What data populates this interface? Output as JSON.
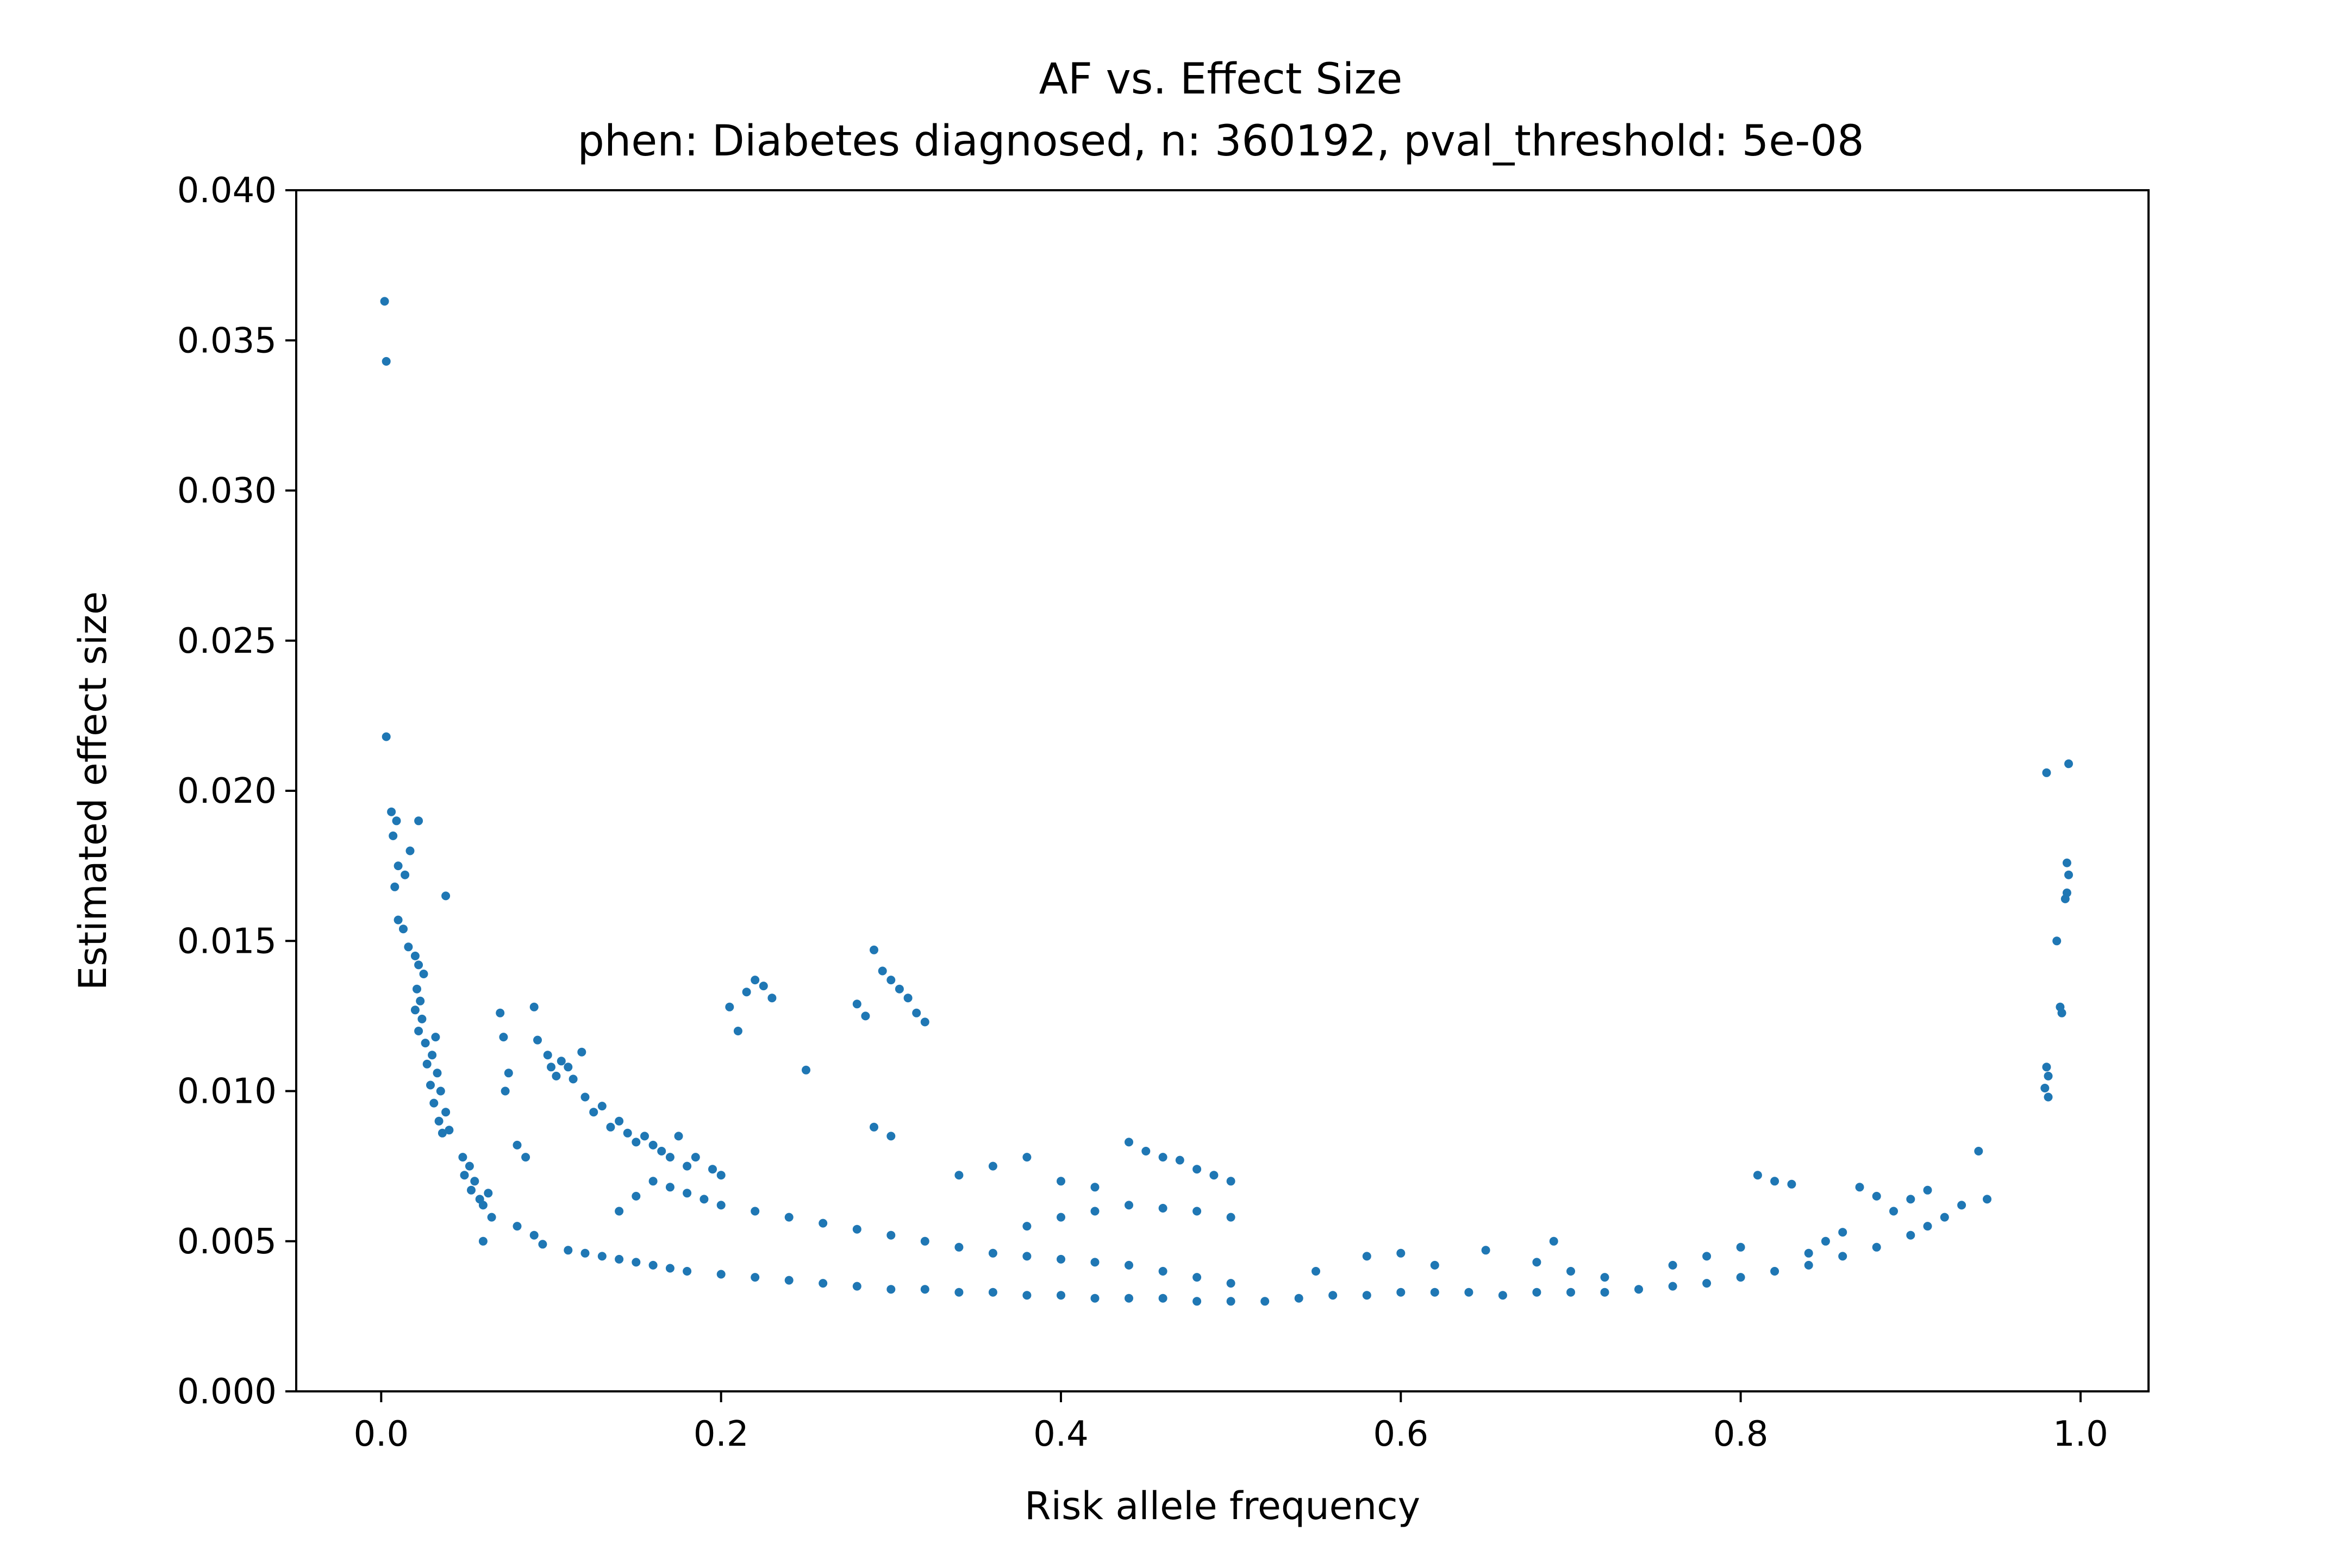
{
  "chart_data": {
    "type": "scatter",
    "title": "AF vs. Effect Size",
    "subtitle": "phen: Diabetes diagnosed, n: 360192, pval_threshold: 5e-08",
    "xlabel": "Risk allele frequency",
    "ylabel": "Estimated effect size",
    "xlim": [
      -0.05,
      1.04
    ],
    "ylim": [
      0.0,
      0.04
    ],
    "x_ticks": [
      "0.0",
      "0.2",
      "0.4",
      "0.6",
      "0.8",
      "1.0"
    ],
    "x_tick_values": [
      0.0,
      0.2,
      0.4,
      0.6,
      0.8,
      1.0
    ],
    "y_ticks": [
      "0.000",
      "0.005",
      "0.010",
      "0.015",
      "0.020",
      "0.025",
      "0.030",
      "0.035",
      "0.040"
    ],
    "y_tick_values": [
      0.0,
      0.005,
      0.01,
      0.015,
      0.02,
      0.025,
      0.03,
      0.035,
      0.04
    ],
    "grid": false,
    "legend": "none",
    "point_color": "#1f77b4",
    "series": [
      {
        "values_xy": [
          [
            0.002,
            0.0363
          ],
          [
            0.003,
            0.0343
          ],
          [
            0.003,
            0.0218
          ],
          [
            0.006,
            0.0193
          ],
          [
            0.009,
            0.019
          ],
          [
            0.007,
            0.0185
          ],
          [
            0.022,
            0.019
          ],
          [
            0.017,
            0.018
          ],
          [
            0.01,
            0.0175
          ],
          [
            0.014,
            0.0172
          ],
          [
            0.008,
            0.0168
          ],
          [
            0.038,
            0.0165
          ],
          [
            0.01,
            0.0157
          ],
          [
            0.013,
            0.0154
          ],
          [
            0.016,
            0.0148
          ],
          [
            0.02,
            0.0145
          ],
          [
            0.022,
            0.0142
          ],
          [
            0.025,
            0.0139
          ],
          [
            0.021,
            0.0134
          ],
          [
            0.023,
            0.013
          ],
          [
            0.02,
            0.0127
          ],
          [
            0.024,
            0.0124
          ],
          [
            0.022,
            0.012
          ],
          [
            0.026,
            0.0116
          ],
          [
            0.032,
            0.0118
          ],
          [
            0.03,
            0.0112
          ],
          [
            0.027,
            0.0109
          ],
          [
            0.033,
            0.0106
          ],
          [
            0.029,
            0.0102
          ],
          [
            0.035,
            0.01
          ],
          [
            0.031,
            0.0096
          ],
          [
            0.038,
            0.0093
          ],
          [
            0.034,
            0.009
          ],
          [
            0.04,
            0.0087
          ],
          [
            0.036,
            0.0086
          ],
          [
            0.048,
            0.0078
          ],
          [
            0.052,
            0.0075
          ],
          [
            0.049,
            0.0072
          ],
          [
            0.055,
            0.007
          ],
          [
            0.053,
            0.0067
          ],
          [
            0.058,
            0.0064
          ],
          [
            0.06,
            0.0062
          ],
          [
            0.063,
            0.0066
          ],
          [
            0.07,
            0.0126
          ],
          [
            0.072,
            0.0118
          ],
          [
            0.075,
            0.0106
          ],
          [
            0.073,
            0.01
          ],
          [
            0.08,
            0.0082
          ],
          [
            0.085,
            0.0078
          ],
          [
            0.09,
            0.0128
          ],
          [
            0.092,
            0.0117
          ],
          [
            0.098,
            0.0112
          ],
          [
            0.1,
            0.0108
          ],
          [
            0.103,
            0.0105
          ],
          [
            0.106,
            0.011
          ],
          [
            0.11,
            0.0108
          ],
          [
            0.113,
            0.0104
          ],
          [
            0.118,
            0.0113
          ],
          [
            0.12,
            0.0098
          ],
          [
            0.125,
            0.0093
          ],
          [
            0.13,
            0.0095
          ],
          [
            0.135,
            0.0088
          ],
          [
            0.14,
            0.009
          ],
          [
            0.145,
            0.0086
          ],
          [
            0.15,
            0.0083
          ],
          [
            0.155,
            0.0085
          ],
          [
            0.16,
            0.0082
          ],
          [
            0.165,
            0.008
          ],
          [
            0.17,
            0.0078
          ],
          [
            0.175,
            0.0085
          ],
          [
            0.18,
            0.0075
          ],
          [
            0.185,
            0.0078
          ],
          [
            0.195,
            0.0074
          ],
          [
            0.2,
            0.0072
          ],
          [
            0.205,
            0.0128
          ],
          [
            0.21,
            0.012
          ],
          [
            0.215,
            0.0133
          ],
          [
            0.22,
            0.0137
          ],
          [
            0.225,
            0.0135
          ],
          [
            0.23,
            0.0131
          ],
          [
            0.25,
            0.0107
          ],
          [
            0.28,
            0.0129
          ],
          [
            0.285,
            0.0125
          ],
          [
            0.29,
            0.0147
          ],
          [
            0.295,
            0.014
          ],
          [
            0.3,
            0.0137
          ],
          [
            0.305,
            0.0134
          ],
          [
            0.31,
            0.0131
          ],
          [
            0.315,
            0.0126
          ],
          [
            0.32,
            0.0123
          ],
          [
            0.29,
            0.0088
          ],
          [
            0.3,
            0.0085
          ],
          [
            0.34,
            0.0072
          ],
          [
            0.36,
            0.0075
          ],
          [
            0.38,
            0.0078
          ],
          [
            0.4,
            0.007
          ],
          [
            0.42,
            0.0068
          ],
          [
            0.44,
            0.0083
          ],
          [
            0.45,
            0.008
          ],
          [
            0.46,
            0.0078
          ],
          [
            0.47,
            0.0077
          ],
          [
            0.48,
            0.0074
          ],
          [
            0.49,
            0.0072
          ],
          [
            0.5,
            0.007
          ],
          [
            0.06,
            0.005
          ],
          [
            0.065,
            0.0058
          ],
          [
            0.08,
            0.0055
          ],
          [
            0.09,
            0.0052
          ],
          [
            0.095,
            0.0049
          ],
          [
            0.11,
            0.0047
          ],
          [
            0.12,
            0.0046
          ],
          [
            0.13,
            0.0045
          ],
          [
            0.14,
            0.0044
          ],
          [
            0.15,
            0.0043
          ],
          [
            0.16,
            0.0042
          ],
          [
            0.17,
            0.0041
          ],
          [
            0.18,
            0.004
          ],
          [
            0.2,
            0.0039
          ],
          [
            0.22,
            0.0038
          ],
          [
            0.24,
            0.0037
          ],
          [
            0.26,
            0.0036
          ],
          [
            0.28,
            0.0035
          ],
          [
            0.3,
            0.0034
          ],
          [
            0.32,
            0.0034
          ],
          [
            0.34,
            0.0033
          ],
          [
            0.36,
            0.0033
          ],
          [
            0.38,
            0.0032
          ],
          [
            0.4,
            0.0032
          ],
          [
            0.42,
            0.0031
          ],
          [
            0.44,
            0.0031
          ],
          [
            0.46,
            0.0031
          ],
          [
            0.48,
            0.003
          ],
          [
            0.5,
            0.003
          ],
          [
            0.52,
            0.003
          ],
          [
            0.54,
            0.0031
          ],
          [
            0.56,
            0.0032
          ],
          [
            0.58,
            0.0032
          ],
          [
            0.6,
            0.0033
          ],
          [
            0.62,
            0.0033
          ],
          [
            0.64,
            0.0033
          ],
          [
            0.66,
            0.0032
          ],
          [
            0.68,
            0.0033
          ],
          [
            0.7,
            0.0033
          ],
          [
            0.72,
            0.0033
          ],
          [
            0.74,
            0.0034
          ],
          [
            0.76,
            0.0035
          ],
          [
            0.78,
            0.0036
          ],
          [
            0.8,
            0.0038
          ],
          [
            0.82,
            0.004
          ],
          [
            0.84,
            0.0042
          ],
          [
            0.86,
            0.0045
          ],
          [
            0.88,
            0.0048
          ],
          [
            0.9,
            0.0052
          ],
          [
            0.91,
            0.0055
          ],
          [
            0.92,
            0.0058
          ],
          [
            0.93,
            0.0062
          ],
          [
            0.945,
            0.0064
          ],
          [
            0.94,
            0.008
          ],
          [
            0.14,
            0.006
          ],
          [
            0.15,
            0.0065
          ],
          [
            0.16,
            0.007
          ],
          [
            0.17,
            0.0068
          ],
          [
            0.18,
            0.0066
          ],
          [
            0.19,
            0.0064
          ],
          [
            0.2,
            0.0062
          ],
          [
            0.22,
            0.006
          ],
          [
            0.24,
            0.0058
          ],
          [
            0.26,
            0.0056
          ],
          [
            0.28,
            0.0054
          ],
          [
            0.3,
            0.0052
          ],
          [
            0.32,
            0.005
          ],
          [
            0.34,
            0.0048
          ],
          [
            0.36,
            0.0046
          ],
          [
            0.38,
            0.0045
          ],
          [
            0.4,
            0.0044
          ],
          [
            0.42,
            0.0043
          ],
          [
            0.44,
            0.0042
          ],
          [
            0.46,
            0.004
          ],
          [
            0.48,
            0.0038
          ],
          [
            0.5,
            0.0036
          ],
          [
            0.38,
            0.0055
          ],
          [
            0.4,
            0.0058
          ],
          [
            0.42,
            0.006
          ],
          [
            0.44,
            0.0062
          ],
          [
            0.46,
            0.0061
          ],
          [
            0.48,
            0.006
          ],
          [
            0.5,
            0.0058
          ],
          [
            0.55,
            0.004
          ],
          [
            0.58,
            0.0045
          ],
          [
            0.6,
            0.0046
          ],
          [
            0.62,
            0.0042
          ],
          [
            0.65,
            0.0047
          ],
          [
            0.68,
            0.0043
          ],
          [
            0.69,
            0.005
          ],
          [
            0.7,
            0.004
          ],
          [
            0.72,
            0.0038
          ],
          [
            0.76,
            0.0042
          ],
          [
            0.78,
            0.0045
          ],
          [
            0.8,
            0.0048
          ],
          [
            0.81,
            0.0072
          ],
          [
            0.82,
            0.007
          ],
          [
            0.83,
            0.0069
          ],
          [
            0.84,
            0.0046
          ],
          [
            0.85,
            0.005
          ],
          [
            0.86,
            0.0053
          ],
          [
            0.87,
            0.0068
          ],
          [
            0.88,
            0.0065
          ],
          [
            0.89,
            0.006
          ],
          [
            0.9,
            0.0064
          ],
          [
            0.91,
            0.0067
          ],
          [
            0.98,
            0.0206
          ],
          [
            0.993,
            0.0209
          ],
          [
            0.992,
            0.0176
          ],
          [
            0.993,
            0.0172
          ],
          [
            0.992,
            0.0166
          ],
          [
            0.991,
            0.0164
          ],
          [
            0.986,
            0.015
          ],
          [
            0.988,
            0.0128
          ],
          [
            0.989,
            0.0126
          ],
          [
            0.98,
            0.0108
          ],
          [
            0.981,
            0.0105
          ],
          [
            0.979,
            0.0101
          ],
          [
            0.981,
            0.0098
          ]
        ]
      }
    ]
  }
}
